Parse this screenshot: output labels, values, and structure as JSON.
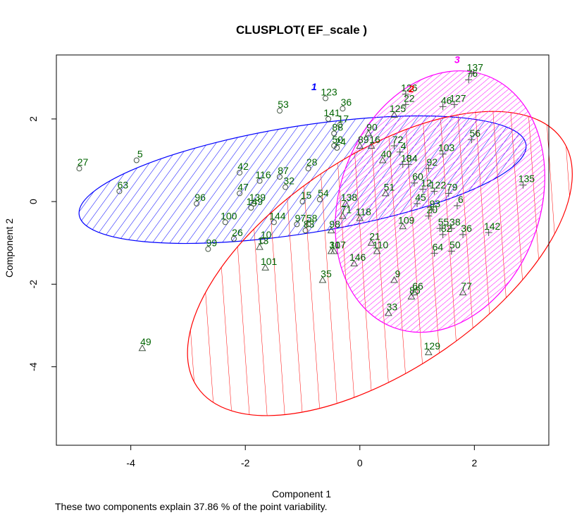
{
  "chart_data": {
    "type": "scatter",
    "title": "CLUSPLOT( EF_scale )",
    "xlabel": "Component 1",
    "ylabel": "Component 2",
    "subtitle": "These two components explain 37.86 % of the point variability.",
    "xlim": [
      -5.3,
      3.3
    ],
    "ylim": [
      -5.9,
      3.55
    ],
    "xticks": [
      -4,
      -2,
      0,
      2
    ],
    "yticks": [
      -4,
      -2,
      0,
      2
    ],
    "label_color": "#006400",
    "clusters": [
      {
        "id": "1",
        "color": "#0000ff",
        "marker": "circle",
        "center": [
          -1.0,
          0.53
        ],
        "axes": [
          3.95,
          1.3
        ],
        "angle_deg": 9,
        "label_pos": [
          -0.8,
          2.7
        ],
        "hatch_angle": 45,
        "hatch_spacing": 10
      },
      {
        "id": "2",
        "color": "#ff0000",
        "marker": "triangle",
        "center": [
          0.35,
          -1.5
        ],
        "axes": [
          3.85,
          2.6
        ],
        "angle_deg": 34,
        "label_pos": [
          0.9,
          2.65
        ],
        "hatch_angle": 60,
        "hatch_spacing": 25
      },
      {
        "id": "3",
        "color": "#ff00ff",
        "marker": "plus",
        "center": [
          1.4,
          0.0
        ],
        "axes": [
          1.75,
          3.25
        ],
        "angle_deg": -20,
        "label_pos": [
          1.7,
          3.35
        ],
        "hatch_angle": 60,
        "hatch_spacing": 6
      }
    ],
    "points": [
      {
        "label": "27",
        "x": -4.9,
        "y": 0.8,
        "c": 1
      },
      {
        "label": "5",
        "x": -3.9,
        "y": 1.0,
        "c": 1
      },
      {
        "label": "63",
        "x": -4.2,
        "y": 0.25,
        "c": 1
      },
      {
        "label": "53",
        "x": -1.4,
        "y": 2.2,
        "c": 1
      },
      {
        "label": "123",
        "x": -0.6,
        "y": 2.5,
        "c": 1
      },
      {
        "label": "141",
        "x": -0.55,
        "y": 2.0,
        "c": 1
      },
      {
        "label": "42",
        "x": -2.1,
        "y": 0.7,
        "c": 1
      },
      {
        "label": "116",
        "x": -1.75,
        "y": 0.5,
        "c": 1
      },
      {
        "label": "87",
        "x": -1.4,
        "y": 0.6,
        "c": 1
      },
      {
        "label": "47",
        "x": -2.1,
        "y": 0.2,
        "c": 1
      },
      {
        "label": "32",
        "x": -1.3,
        "y": 0.35,
        "c": 1
      },
      {
        "label": "96",
        "x": -2.85,
        "y": -0.05,
        "c": 1
      },
      {
        "label": "139",
        "x": -1.85,
        "y": -0.05,
        "c": 1
      },
      {
        "label": "149",
        "x": -1.9,
        "y": -0.15,
        "c": 1
      },
      {
        "label": "100",
        "x": -2.35,
        "y": -0.5,
        "c": 1
      },
      {
        "label": "144",
        "x": -1.5,
        "y": -0.5,
        "c": 1
      },
      {
        "label": "26",
        "x": -2.2,
        "y": -0.9,
        "c": 1
      },
      {
        "label": "10",
        "x": -1.7,
        "y": -0.95,
        "c": 1
      },
      {
        "label": "99",
        "x": -2.65,
        "y": -1.15,
        "c": 1
      },
      {
        "label": "15",
        "x": -1.0,
        "y": 0.0,
        "c": 1
      },
      {
        "label": "97",
        "x": -1.1,
        "y": -0.55,
        "c": 1
      },
      {
        "label": "58",
        "x": -0.9,
        "y": -0.55,
        "c": 1
      },
      {
        "label": "83",
        "x": -0.95,
        "y": -0.7,
        "c": 1
      },
      {
        "label": "28",
        "x": -0.9,
        "y": 0.8,
        "c": 1
      },
      {
        "label": "54",
        "x": -0.7,
        "y": 0.05,
        "c": 1
      },
      {
        "label": "36",
        "x": -0.3,
        "y": 2.25,
        "c": 1
      },
      {
        "label": "17",
        "x": -0.35,
        "y": 1.85,
        "c": 1
      },
      {
        "label": "88",
        "x": -0.45,
        "y": 1.65,
        "c": 1
      },
      {
        "label": "50",
        "x": -0.45,
        "y": 1.35,
        "c": 1
      },
      {
        "label": "24",
        "x": -0.4,
        "y": 1.3,
        "c": 1
      },
      {
        "label": "13",
        "x": -1.75,
        "y": -1.1,
        "c": 2
      },
      {
        "label": "101",
        "x": -1.65,
        "y": -1.6,
        "c": 2
      },
      {
        "label": "49",
        "x": -3.8,
        "y": -3.55,
        "c": 2
      },
      {
        "label": "35",
        "x": -0.65,
        "y": -1.9,
        "c": 2
      },
      {
        "label": "31",
        "x": -0.5,
        "y": -1.2,
        "c": 2
      },
      {
        "label": "107",
        "x": -0.45,
        "y": -1.2,
        "c": 2
      },
      {
        "label": "146",
        "x": -0.1,
        "y": -1.5,
        "c": 2
      },
      {
        "label": "98",
        "x": -0.5,
        "y": -0.7,
        "c": 2
      },
      {
        "label": "71",
        "x": -0.3,
        "y": -0.35,
        "c": 2
      },
      {
        "label": "118",
        "x": 0.0,
        "y": -0.4,
        "c": 2
      },
      {
        "label": "138",
        "x": -0.25,
        "y": -0.05,
        "c": 2
      },
      {
        "label": "33",
        "x": 0.5,
        "y": -2.7,
        "c": 2
      },
      {
        "label": "9",
        "x": 0.6,
        "y": -1.9,
        "c": 2
      },
      {
        "label": "66",
        "x": 0.95,
        "y": -2.2,
        "c": 2
      },
      {
        "label": "85",
        "x": 0.9,
        "y": -2.3,
        "c": 2
      },
      {
        "label": "129",
        "x": 1.2,
        "y": -3.65,
        "c": 2
      },
      {
        "label": "77",
        "x": 1.8,
        "y": -2.2,
        "c": 2
      },
      {
        "label": "21",
        "x": 0.2,
        "y": -1.0,
        "c": 2
      },
      {
        "label": "110",
        "x": 0.3,
        "y": -1.2,
        "c": 2
      },
      {
        "label": "109",
        "x": 0.75,
        "y": -0.6,
        "c": 2
      },
      {
        "label": "51",
        "x": 0.45,
        "y": 0.2,
        "c": 2
      },
      {
        "label": "40",
        "x": 0.4,
        "y": 1.0,
        "c": 2
      },
      {
        "label": "90",
        "x": 0.15,
        "y": 1.65,
        "c": 2
      },
      {
        "label": "16",
        "x": 0.2,
        "y": 1.35,
        "c": 2
      },
      {
        "label": "89",
        "x": 0.0,
        "y": 1.35,
        "c": 2
      },
      {
        "label": "125",
        "x": 0.6,
        "y": 2.1,
        "c": 2
      },
      {
        "label": "137",
        "x": 1.95,
        "y": 3.1,
        "c": 3
      },
      {
        "label": "76",
        "x": 1.9,
        "y": 2.95,
        "c": 3
      },
      {
        "label": "126",
        "x": 0.8,
        "y": 2.6,
        "c": 3
      },
      {
        "label": "22",
        "x": 0.8,
        "y": 2.35,
        "c": 3
      },
      {
        "label": "46",
        "x": 1.45,
        "y": 2.3,
        "c": 3
      },
      {
        "label": "127",
        "x": 1.65,
        "y": 2.35,
        "c": 3
      },
      {
        "label": "56",
        "x": 1.95,
        "y": 1.5,
        "c": 3
      },
      {
        "label": "103",
        "x": 1.45,
        "y": 1.15,
        "c": 3
      },
      {
        "label": "92",
        "x": 1.2,
        "y": 0.8,
        "c": 3
      },
      {
        "label": "135",
        "x": 2.85,
        "y": 0.4,
        "c": 3
      },
      {
        "label": "79",
        "x": 1.55,
        "y": 0.2,
        "c": 3
      },
      {
        "label": "6",
        "x": 1.7,
        "y": -0.1,
        "c": 3
      },
      {
        "label": "142",
        "x": 2.25,
        "y": -0.75,
        "c": 3
      },
      {
        "label": "38",
        "x": 1.6,
        "y": -0.65,
        "c": 3
      },
      {
        "label": "36",
        "x": 1.8,
        "y": -0.8,
        "c": 3
      },
      {
        "label": "50",
        "x": 1.6,
        "y": -1.2,
        "c": 3
      },
      {
        "label": "64",
        "x": 1.3,
        "y": -1.25,
        "c": 3
      },
      {
        "label": "82",
        "x": 1.45,
        "y": -0.8,
        "c": 3
      },
      {
        "label": "55",
        "x": 1.4,
        "y": -0.65,
        "c": 3
      },
      {
        "label": "93",
        "x": 1.25,
        "y": -0.2,
        "c": 3
      },
      {
        "label": "20",
        "x": 1.2,
        "y": -0.35,
        "c": 3
      },
      {
        "label": "122",
        "x": 1.3,
        "y": 0.25,
        "c": 3
      },
      {
        "label": "72",
        "x": 0.6,
        "y": 1.35,
        "c": 3
      },
      {
        "label": "34",
        "x": 0.85,
        "y": 0.9,
        "c": 3
      },
      {
        "label": "18",
        "x": 0.75,
        "y": 0.9,
        "c": 3
      },
      {
        "label": "4",
        "x": 0.7,
        "y": 1.2,
        "c": 3
      },
      {
        "label": "12",
        "x": 1.1,
        "y": 0.3,
        "c": 3
      },
      {
        "label": "60",
        "x": 0.95,
        "y": 0.45,
        "c": 3
      },
      {
        "label": "45",
        "x": 1.0,
        "y": -0.05,
        "c": 3
      }
    ]
  }
}
